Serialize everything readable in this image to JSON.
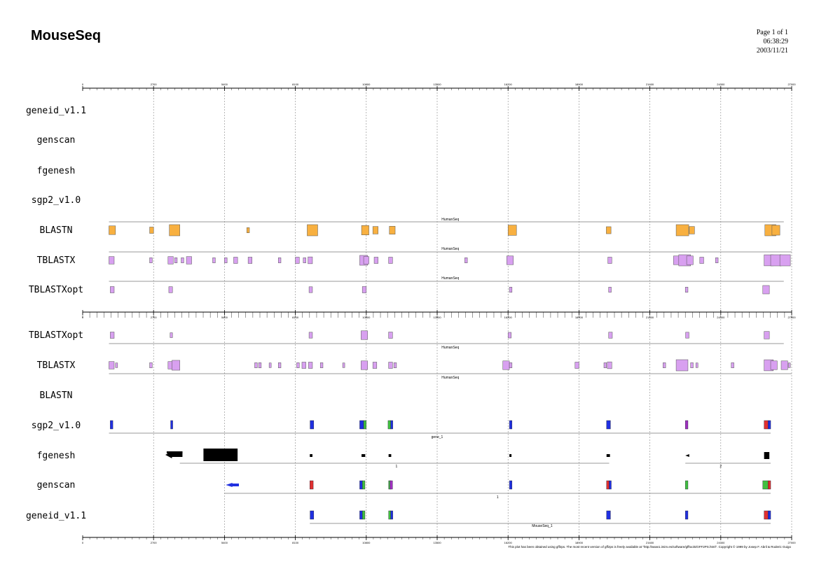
{
  "header": {
    "title": "MouseSeq",
    "page": "Page 1 of 1",
    "time": "06:38:29",
    "date": "2003/11/21"
  },
  "axis": {
    "min": 0,
    "max": 27000,
    "ticks": [
      0,
      2700,
      5400,
      8100,
      10800,
      13500,
      16200,
      18900,
      21600,
      24300,
      27000
    ]
  },
  "top_panel": {
    "tracks": [
      "geneid_v1.1",
      "genscan",
      "fgenesh",
      "sgp2_v1.0",
      "BLASTN",
      "TBLASTX",
      "TBLASTXopt"
    ],
    "hit_label": "HumanSeq"
  },
  "bottom_panel": {
    "tracks": [
      "TBLASTXopt",
      "TBLASTX",
      "BLASTN",
      "sgp2_v1.0",
      "fgenesh",
      "genscan",
      "geneid_v1.1"
    ],
    "hit_label": "HumanSeq",
    "gene_labels": {
      "sgp2": "gene_1",
      "fgenesh_1": "1",
      "fgenesh_2": "2",
      "genscan_1": "1",
      "geneid": "MouseSeq_1"
    }
  },
  "colors": {
    "blastn": "#f8b040",
    "tblastx": "#d8a0f0",
    "exon_initial": "#2030e0",
    "exon_internal": "#40c040",
    "exon_terminal": "#e03030",
    "exon_single": "#a030c0",
    "gene": "#000000"
  },
  "features": {
    "top_blastn": [
      [
        1000,
        1250
      ],
      [
        2550,
        2700
      ],
      [
        3300,
        3700
      ],
      [
        6250,
        6350
      ],
      [
        8550,
        8950
      ],
      [
        10620,
        10900
      ],
      [
        11050,
        11250
      ],
      [
        11680,
        11900
      ],
      [
        16200,
        16520
      ],
      [
        19940,
        20120
      ],
      [
        22600,
        23080
      ],
      [
        23100,
        23300
      ],
      [
        25980,
        26400
      ],
      [
        26250,
        26550
      ]
    ],
    "top_tblastx": [
      [
        1000,
        1200
      ],
      [
        2550,
        2650
      ],
      [
        3250,
        3450
      ],
      [
        3500,
        3600
      ],
      [
        3750,
        3850
      ],
      [
        3950,
        4150
      ],
      [
        4950,
        5050
      ],
      [
        5400,
        5500
      ],
      [
        5750,
        5900
      ],
      [
        6300,
        6450
      ],
      [
        7450,
        7550
      ],
      [
        8100,
        8250
      ],
      [
        8400,
        8500
      ],
      [
        8580,
        8750
      ],
      [
        10550,
        10850
      ],
      [
        10700,
        10900
      ],
      [
        11100,
        11250
      ],
      [
        11650,
        11800
      ],
      [
        14550,
        14650
      ],
      [
        16150,
        16400
      ],
      [
        20000,
        20150
      ],
      [
        22500,
        22750
      ],
      [
        22700,
        23150
      ],
      [
        23000,
        23250
      ],
      [
        23500,
        23650
      ],
      [
        24100,
        24200
      ],
      [
        25950,
        26300
      ],
      [
        26200,
        26600
      ],
      [
        26550,
        26950
      ]
    ],
    "top_tblastxopt": [
      [
        1050,
        1200
      ],
      [
        3280,
        3420
      ],
      [
        8620,
        8750
      ],
      [
        10650,
        10800
      ],
      [
        16250,
        16350
      ],
      [
        20030,
        20130
      ],
      [
        22950,
        23050
      ],
      [
        25900,
        26150
      ]
    ],
    "bot_tblastxopt": [
      [
        1050,
        1200
      ],
      [
        3330,
        3420
      ],
      [
        8620,
        8750
      ],
      [
        10600,
        10850
      ],
      [
        11650,
        11800
      ],
      [
        16200,
        16320
      ],
      [
        20030,
        20170
      ],
      [
        22960,
        23090
      ],
      [
        25950,
        26150
      ]
    ],
    "bot_tblastx": [
      [
        1000,
        1200
      ],
      [
        1250,
        1330
      ],
      [
        2550,
        2650
      ],
      [
        3250,
        3450
      ],
      [
        3400,
        3700
      ],
      [
        6550,
        6650
      ],
      [
        6700,
        6800
      ],
      [
        7100,
        7150
      ],
      [
        7450,
        7550
      ],
      [
        8150,
        8250
      ],
      [
        8350,
        8500
      ],
      [
        8600,
        8750
      ],
      [
        9050,
        9150
      ],
      [
        9900,
        9950
      ],
      [
        10600,
        10850
      ],
      [
        11050,
        11200
      ],
      [
        11650,
        11800
      ],
      [
        11850,
        11950
      ],
      [
        16000,
        16250
      ],
      [
        16250,
        16350
      ],
      [
        18750,
        18900
      ],
      [
        19850,
        19950
      ],
      [
        19980,
        20150
      ],
      [
        22100,
        22200
      ],
      [
        22600,
        23050
      ],
      [
        23150,
        23250
      ],
      [
        23350,
        23400
      ],
      [
        24700,
        24800
      ],
      [
        25950,
        26300
      ],
      [
        26200,
        26450
      ],
      [
        26600,
        26850
      ],
      [
        26870,
        26950
      ]
    ],
    "sgp2_exons": [
      [
        1050,
        1150,
        "exon_initial"
      ],
      [
        3350,
        3430,
        "exon_initial"
      ],
      [
        8660,
        8800,
        "exon_initial"
      ],
      [
        10550,
        10700,
        "exon_initial"
      ],
      [
        10700,
        10800,
        "exon_internal"
      ],
      [
        11630,
        11730,
        "exon_internal"
      ],
      [
        11730,
        11800,
        "exon_initial"
      ],
      [
        16250,
        16350,
        "exon_initial"
      ],
      [
        19950,
        20100,
        "exon_initial"
      ],
      [
        22950,
        23050,
        "exon_single"
      ],
      [
        25950,
        26100,
        "exon_terminal"
      ],
      [
        26100,
        26200,
        "exon_initial"
      ]
    ],
    "fgenesh_exons": [
      [
        8650,
        8750
      ],
      [
        10620,
        10760
      ],
      [
        11650,
        11750
      ],
      [
        16250,
        16320
      ],
      [
        19950,
        20080
      ],
      [
        25950,
        26150
      ]
    ],
    "genscan_exons": [
      [
        8650,
        8780,
        "exon_terminal"
      ],
      [
        10550,
        10650,
        "exon_initial"
      ],
      [
        10650,
        10750,
        "exon_internal"
      ],
      [
        11650,
        11700,
        "exon_internal"
      ],
      [
        11700,
        11800,
        "exon_single"
      ],
      [
        16250,
        16350,
        "exon_initial"
      ],
      [
        19950,
        20050,
        "exon_terminal"
      ],
      [
        20050,
        20120,
        "exon_initial"
      ],
      [
        22950,
        23050,
        "exon_internal"
      ],
      [
        25900,
        26100,
        "exon_internal"
      ],
      [
        26100,
        26200,
        "exon_terminal"
      ]
    ],
    "geneid_exons": [
      [
        8660,
        8800,
        "exon_initial"
      ],
      [
        10550,
        10650,
        "exon_initial"
      ],
      [
        10650,
        10750,
        "exon_internal"
      ],
      [
        11650,
        11730,
        "exon_internal"
      ],
      [
        11730,
        11800,
        "exon_initial"
      ],
      [
        19950,
        20100,
        "exon_initial"
      ],
      [
        22950,
        23050,
        "exon_initial"
      ],
      [
        25950,
        26100,
        "exon_terminal"
      ],
      [
        26100,
        26200,
        "exon_initial"
      ]
    ]
  },
  "footer": "This plot has been obtained using gff2ps. The most recent version of gff2ps is freely available at \"http://www1.imim.es/software/gfftools/GFF2PS.html\". Copyright © 1999 by Josep F. Abril & Roderic Guigo"
}
